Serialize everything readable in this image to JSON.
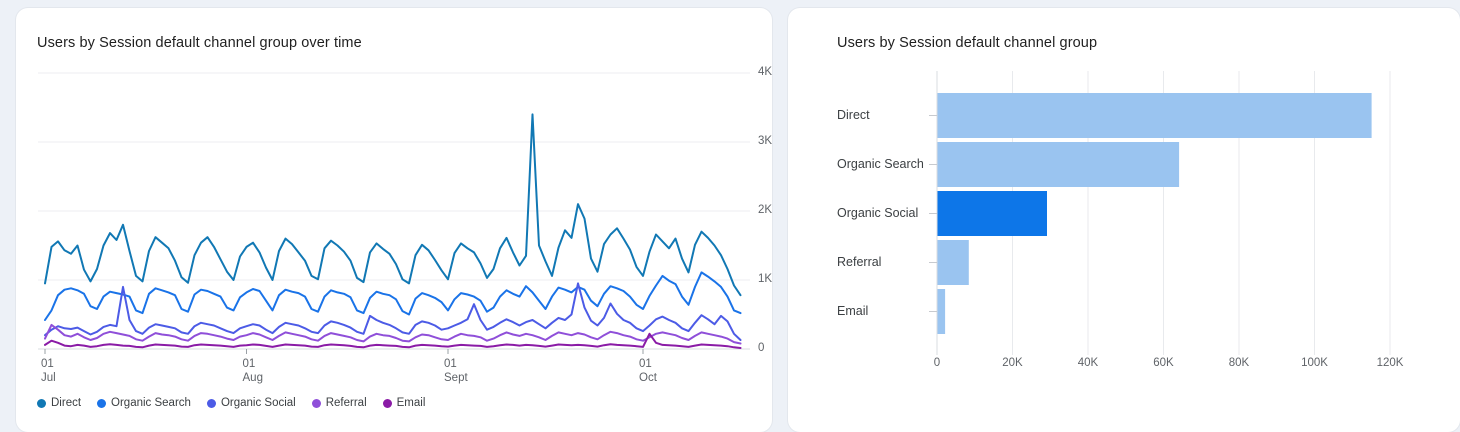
{
  "page": {
    "background_color": "#edf1f7",
    "card_color": "#ffffff"
  },
  "chart_data": [
    {
      "type": "line",
      "title": "Users by Session default channel group over time",
      "xlabel": "",
      "ylabel": "",
      "ylim": [
        0,
        4000
      ],
      "grid": "horizontal",
      "legend_position": "bottom",
      "y_ticks": [
        {
          "value": 0,
          "label": "0"
        },
        {
          "value": 1000,
          "label": "1K"
        },
        {
          "value": 2000,
          "label": "2K"
        },
        {
          "value": 3000,
          "label": "3K"
        },
        {
          "value": 4000,
          "label": "4K"
        }
      ],
      "x_ticks": [
        {
          "day_index": 0,
          "day": "01",
          "month": "Jul"
        },
        {
          "day_index": 31,
          "day": "01",
          "month": "Aug"
        },
        {
          "day_index": 62,
          "day": "01",
          "month": "Sept"
        },
        {
          "day_index": 92,
          "day": "01",
          "month": "Oct"
        }
      ],
      "num_points": 108,
      "series": [
        {
          "name": "Direct",
          "color": "#1178B4",
          "values": [
            950,
            1480,
            1560,
            1430,
            1380,
            1500,
            1150,
            980,
            1160,
            1500,
            1680,
            1580,
            1800,
            1420,
            1060,
            980,
            1420,
            1620,
            1540,
            1460,
            1280,
            1040,
            960,
            1360,
            1540,
            1620,
            1480,
            1300,
            1120,
            1000,
            1340,
            1480,
            1540,
            1400,
            1180,
            1000,
            1420,
            1600,
            1520,
            1400,
            1280,
            1060,
            1010,
            1460,
            1570,
            1500,
            1410,
            1280,
            1030,
            970,
            1400,
            1530,
            1450,
            1380,
            1230,
            1010,
            950,
            1360,
            1510,
            1430,
            1290,
            1140,
            1010,
            1390,
            1530,
            1460,
            1400,
            1240,
            1030,
            1160,
            1460,
            1610,
            1400,
            1210,
            1350,
            3400,
            1500,
            1270,
            1060,
            1470,
            1720,
            1610,
            2100,
            1890,
            1310,
            1120,
            1520,
            1660,
            1750,
            1600,
            1440,
            1190,
            1060,
            1410,
            1660,
            1560,
            1460,
            1600,
            1310,
            1110,
            1510,
            1700,
            1610,
            1500,
            1360,
            1160,
            920,
            780
          ]
        },
        {
          "name": "Organic Search",
          "color": "#1A73E8",
          "values": [
            420,
            560,
            780,
            860,
            880,
            850,
            800,
            620,
            580,
            760,
            830,
            810,
            790,
            760,
            560,
            520,
            800,
            880,
            850,
            820,
            780,
            580,
            540,
            790,
            860,
            840,
            800,
            760,
            600,
            560,
            750,
            820,
            870,
            840,
            700,
            560,
            780,
            860,
            830,
            810,
            760,
            580,
            540,
            760,
            850,
            820,
            800,
            750,
            560,
            520,
            740,
            830,
            800,
            780,
            720,
            550,
            500,
            730,
            810,
            780,
            740,
            680,
            560,
            720,
            810,
            790,
            760,
            700,
            540,
            600,
            760,
            850,
            800,
            760,
            910,
            820,
            700,
            580,
            760,
            890,
            860,
            820,
            900,
            860,
            700,
            620,
            800,
            910,
            880,
            840,
            760,
            640,
            580,
            770,
            920,
            1060,
            990,
            940,
            760,
            640,
            900,
            1110,
            1050,
            980,
            900,
            760,
            560,
            520
          ]
        },
        {
          "name": "Organic Social",
          "color": "#4C5BE6",
          "values": [
            200,
            280,
            330,
            300,
            290,
            310,
            260,
            210,
            250,
            320,
            350,
            330,
            900,
            420,
            260,
            220,
            310,
            360,
            340,
            320,
            300,
            240,
            220,
            330,
            380,
            360,
            340,
            300,
            260,
            230,
            300,
            330,
            360,
            340,
            280,
            230,
            320,
            380,
            360,
            340,
            300,
            250,
            230,
            340,
            400,
            380,
            350,
            310,
            250,
            220,
            480,
            420,
            380,
            350,
            300,
            240,
            220,
            350,
            400,
            380,
            340,
            280,
            300,
            340,
            380,
            430,
            650,
            420,
            280,
            320,
            380,
            430,
            390,
            340,
            390,
            420,
            360,
            300,
            380,
            450,
            420,
            500,
            950,
            600,
            410,
            340,
            450,
            660,
            510,
            420,
            380,
            300,
            260,
            340,
            430,
            470,
            420,
            380,
            300,
            260,
            380,
            490,
            430,
            360,
            480,
            400,
            220,
            130
          ]
        },
        {
          "name": "Referral",
          "color": "#8F4FD9",
          "values": [
            150,
            350,
            280,
            200,
            180,
            220,
            170,
            130,
            160,
            220,
            250,
            230,
            210,
            190,
            140,
            120,
            180,
            230,
            210,
            200,
            180,
            140,
            120,
            190,
            230,
            220,
            200,
            180,
            150,
            130,
            180,
            200,
            230,
            210,
            170,
            130,
            190,
            240,
            220,
            200,
            180,
            140,
            120,
            190,
            230,
            210,
            190,
            170,
            130,
            110,
            180,
            220,
            200,
            190,
            160,
            120,
            110,
            170,
            210,
            200,
            170,
            140,
            130,
            180,
            220,
            200,
            190,
            170,
            120,
            150,
            200,
            240,
            210,
            190,
            220,
            200,
            170,
            130,
            190,
            240,
            220,
            200,
            230,
            210,
            170,
            140,
            200,
            250,
            230,
            200,
            180,
            140,
            120,
            170,
            220,
            240,
            220,
            200,
            160,
            130,
            190,
            240,
            220,
            200,
            180,
            150,
            100,
            80
          ]
        },
        {
          "name": "Email",
          "color": "#8A1BA6",
          "values": [
            60,
            120,
            90,
            50,
            40,
            60,
            50,
            30,
            40,
            60,
            70,
            60,
            50,
            45,
            30,
            25,
            50,
            65,
            60,
            55,
            50,
            35,
            30,
            55,
            65,
            60,
            55,
            50,
            40,
            30,
            50,
            55,
            65,
            60,
            45,
            30,
            50,
            65,
            60,
            55,
            50,
            35,
            30,
            55,
            65,
            60,
            55,
            45,
            30,
            25,
            50,
            60,
            55,
            50,
            45,
            30,
            25,
            50,
            60,
            55,
            50,
            40,
            35,
            50,
            60,
            55,
            50,
            45,
            30,
            40,
            55,
            65,
            60,
            50,
            60,
            55,
            45,
            35,
            50,
            65,
            60,
            55,
            60,
            55,
            45,
            35,
            55,
            70,
            60,
            55,
            50,
            40,
            30,
            220,
            90,
            60,
            55,
            50,
            40,
            30,
            50,
            65,
            60,
            55,
            50,
            40,
            25,
            15
          ]
        }
      ]
    },
    {
      "type": "bar",
      "orientation": "horizontal",
      "title": "Users by Session default channel group",
      "categories": [
        "Direct",
        "Organic Search",
        "Organic Social",
        "Referral",
        "Email"
      ],
      "values": [
        115000,
        64000,
        29000,
        8300,
        2000
      ],
      "xlim": [
        0,
        120000
      ],
      "grid": "vertical",
      "x_ticks": [
        {
          "value": 0,
          "label": "0"
        },
        {
          "value": 20000,
          "label": "20K"
        },
        {
          "value": 40000,
          "label": "40K"
        },
        {
          "value": 60000,
          "label": "60K"
        },
        {
          "value": 80000,
          "label": "80K"
        },
        {
          "value": 100000,
          "label": "100K"
        },
        {
          "value": 120000,
          "label": "120K"
        }
      ],
      "bar_color_default": "#9AC4F0",
      "bar_color_highlight": "#0D76E8",
      "highlighted_category": "Organic Social"
    }
  ]
}
